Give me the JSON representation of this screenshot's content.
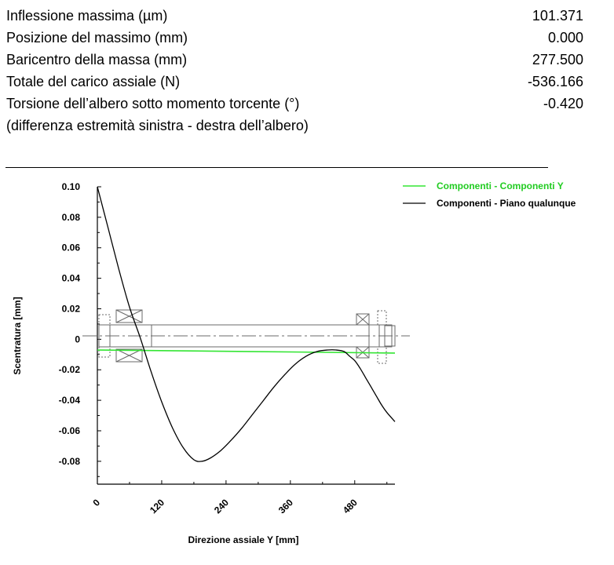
{
  "results": {
    "rows": [
      {
        "label": "Inflessione massima (µm)",
        "value": "101.371"
      },
      {
        "label": "Posizione del massimo (mm)",
        "value": "0.000"
      },
      {
        "label": "Baricentro della massa (mm)",
        "value": "277.500"
      },
      {
        "label": "Totale del carico assiale (N)",
        "value": "-536.166"
      },
      {
        "label": "Torsione dell’albero sotto momento torcente (°)",
        "value": "-0.420"
      }
    ],
    "note": "(differenza estremità sinistra - destra dell’albero)"
  },
  "chart_data": {
    "type": "line",
    "xlabel": "Direzione assiale Y [mm]",
    "ylabel": "Scentratura [mm]",
    "xlim": [
      0,
      555
    ],
    "ylim": [
      -0.095,
      0.1
    ],
    "x_ticks": [
      {
        "v": 0,
        "label": "0"
      },
      {
        "v": 120,
        "label": "120"
      },
      {
        "v": 240,
        "label": "240"
      },
      {
        "v": 360,
        "label": "360"
      },
      {
        "v": 480,
        "label": "480"
      }
    ],
    "y_ticks": [
      {
        "v": 0.1,
        "label": "0.10"
      },
      {
        "v": 0.08,
        "label": "0.08"
      },
      {
        "v": 0.06,
        "label": "0.06"
      },
      {
        "v": 0.04,
        "label": "0.04"
      },
      {
        "v": 0.02,
        "label": "0.02"
      },
      {
        "v": 0,
        "label": "0"
      },
      {
        "v": -0.02,
        "label": "-0.02"
      },
      {
        "v": -0.04,
        "label": "-0.04"
      },
      {
        "v": -0.06,
        "label": "-0.06"
      },
      {
        "v": -0.08,
        "label": "-0.08"
      }
    ],
    "legend_position": "top-right",
    "series": [
      {
        "name": "Componenti - Componenti Y",
        "color": "#33e533",
        "x": [
          0,
          555
        ],
        "y": [
          -0.007,
          -0.009
        ]
      },
      {
        "name": "Componenti - Piano qualunque",
        "color": "#000000",
        "x": [
          0,
          20,
          40,
          60,
          80,
          100,
          120,
          140,
          160,
          180,
          195,
          210,
          230,
          250,
          270,
          290,
          310,
          330,
          350,
          370,
          390,
          410,
          430,
          445,
          460,
          470,
          480,
          490,
          500,
          510,
          520,
          530,
          540,
          555
        ],
        "y": [
          0.1,
          0.073,
          0.046,
          0.021,
          0.001,
          -0.021,
          -0.041,
          -0.058,
          -0.071,
          -0.079,
          -0.08,
          -0.078,
          -0.073,
          -0.066,
          -0.058,
          -0.049,
          -0.04,
          -0.031,
          -0.023,
          -0.016,
          -0.011,
          -0.008,
          -0.007,
          -0.007,
          -0.008,
          -0.011,
          -0.014,
          -0.019,
          -0.025,
          -0.031,
          -0.037,
          -0.043,
          -0.048,
          -0.054
        ]
      }
    ]
  }
}
